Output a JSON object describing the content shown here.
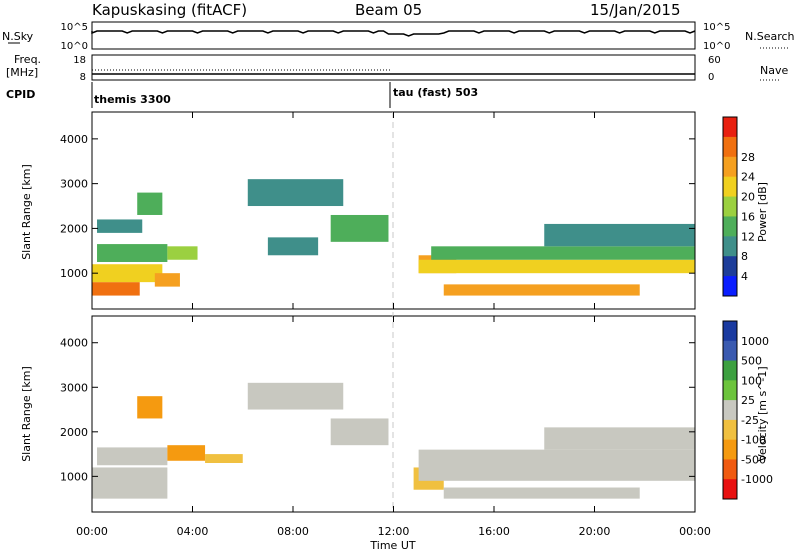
{
  "header": {
    "station": "Kapuskasing (fitACF)",
    "beam": "Beam 05",
    "date": "15/Jan/2015"
  },
  "noise_panel": {
    "left_label": "N.Sky",
    "left_ticks": [
      "10^5",
      "10^0"
    ],
    "right_ticks": [
      "10^5",
      "10^0"
    ],
    "right_label": "N.Search"
  },
  "freq_panel": {
    "left_label_1": "Freq.",
    "left_label_2": "[MHz]",
    "left_ticks": [
      "18",
      "8"
    ],
    "right_ticks": [
      "60",
      "0"
    ],
    "right_label": "Nave"
  },
  "cpid": {
    "label": "CPID",
    "segments": [
      {
        "name": "themis 3300",
        "start_hour": 0
      },
      {
        "name": "tau (fast) 503",
        "start_hour": 12
      }
    ]
  },
  "colors": {
    "power": [
      "#0a1eff",
      "#1d3d9a",
      "#3f8f8a",
      "#4eae5a",
      "#9bd040",
      "#f0d020",
      "#f5a020",
      "#f07010",
      "#e82010"
    ],
    "velocity": [
      "#e81010",
      "#f05a10",
      "#f59a10",
      "#f0c040",
      "#c8c8c0",
      "#6cc43c",
      "#3ca040",
      "#3a5ab0",
      "#1a3aa0"
    ],
    "nsky_trace": "#000000",
    "divider": "#c8c8c8"
  },
  "chart_data": [
    {
      "type": "heatmap",
      "name": "power",
      "ylabel": "Slant Range [km]",
      "xlabel": "Time UT",
      "xlim_hours": [
        0,
        24
      ],
      "ylim": [
        200,
        4600
      ],
      "x_ticks": [
        "00:00",
        "04:00",
        "08:00",
        "12:00",
        "16:00",
        "20:00",
        "00:00"
      ],
      "y_ticks": [
        1000,
        2000,
        3000,
        4000
      ],
      "colorbar": {
        "label": "Power [dB]",
        "ticks": [
          "4",
          "8",
          "12",
          "16",
          "20",
          "24",
          "28"
        ]
      },
      "regions": [
        {
          "t": [
            0.0,
            1.9
          ],
          "r": [
            500,
            800
          ],
          "level": 28
        },
        {
          "t": [
            0.0,
            2.8
          ],
          "r": [
            800,
            1200
          ],
          "level": 20
        },
        {
          "t": [
            0.2,
            3.0
          ],
          "r": [
            1250,
            1650
          ],
          "level": 14
        },
        {
          "t": [
            0.2,
            2.0
          ],
          "r": [
            1900,
            2200
          ],
          "level": 8
        },
        {
          "t": [
            1.8,
            2.8
          ],
          "r": [
            2300,
            2800
          ],
          "level": 12
        },
        {
          "t": [
            2.5,
            3.5
          ],
          "r": [
            700,
            1000
          ],
          "level": 26
        },
        {
          "t": [
            3.0,
            4.2
          ],
          "r": [
            1300,
            1600
          ],
          "level": 16
        },
        {
          "t": [
            6.2,
            10.0
          ],
          "r": [
            2500,
            3100
          ],
          "level": 10
        },
        {
          "t": [
            9.5,
            11.8
          ],
          "r": [
            1700,
            2300
          ],
          "level": 14
        },
        {
          "t": [
            7.0,
            9.0
          ],
          "r": [
            1400,
            1800
          ],
          "level": 8
        },
        {
          "t": [
            13.0,
            14.5
          ],
          "r": [
            1000,
            1400
          ],
          "level": 24
        },
        {
          "t": [
            13.0,
            24.0
          ],
          "r": [
            1000,
            1300
          ],
          "level": 22
        },
        {
          "t": [
            13.5,
            24.0
          ],
          "r": [
            1300,
            1600
          ],
          "level": 14
        },
        {
          "t": [
            14.0,
            21.8
          ],
          "r": [
            500,
            750
          ],
          "level": 27
        },
        {
          "t": [
            18.0,
            24.0
          ],
          "r": [
            1600,
            2100
          ],
          "level": 8
        }
      ]
    },
    {
      "type": "heatmap",
      "name": "velocity",
      "ylabel": "Slant Range [km]",
      "xlabel": "Time UT",
      "xlim_hours": [
        0,
        24
      ],
      "ylim": [
        200,
        4600
      ],
      "x_ticks": [
        "00:00",
        "04:00",
        "08:00",
        "12:00",
        "16:00",
        "20:00",
        "00:00"
      ],
      "y_ticks": [
        1000,
        2000,
        3000,
        4000
      ],
      "colorbar": {
        "label": "Velocity [m s^-1]",
        "ticks": [
          "1000",
          "500",
          "100",
          "25",
          "-25",
          "-100",
          "-500",
          "-1000"
        ]
      },
      "regions": [
        {
          "t": [
            0.0,
            3.0
          ],
          "r": [
            500,
            1200
          ],
          "level": 0
        },
        {
          "t": [
            0.2,
            3.0
          ],
          "r": [
            1250,
            1650
          ],
          "level": 0
        },
        {
          "t": [
            1.8,
            2.8
          ],
          "r": [
            2300,
            2800
          ],
          "level": -200
        },
        {
          "t": [
            3.0,
            4.5
          ],
          "r": [
            1350,
            1700
          ],
          "level": -200
        },
        {
          "t": [
            4.5,
            6.0
          ],
          "r": [
            1300,
            1500
          ],
          "level": -60
        },
        {
          "t": [
            6.2,
            10.0
          ],
          "r": [
            2500,
            3100
          ],
          "level": 0
        },
        {
          "t": [
            9.5,
            11.8
          ],
          "r": [
            1700,
            2300
          ],
          "level": 0
        },
        {
          "t": [
            12.8,
            14.0
          ],
          "r": [
            700,
            1200
          ],
          "level": -60
        },
        {
          "t": [
            13.0,
            24.0
          ],
          "r": [
            900,
            1600
          ],
          "level": 0
        },
        {
          "t": [
            14.0,
            21.8
          ],
          "r": [
            500,
            750
          ],
          "level": 0
        },
        {
          "t": [
            18.0,
            24.0
          ],
          "r": [
            1600,
            2100
          ],
          "level": 0
        }
      ]
    }
  ]
}
